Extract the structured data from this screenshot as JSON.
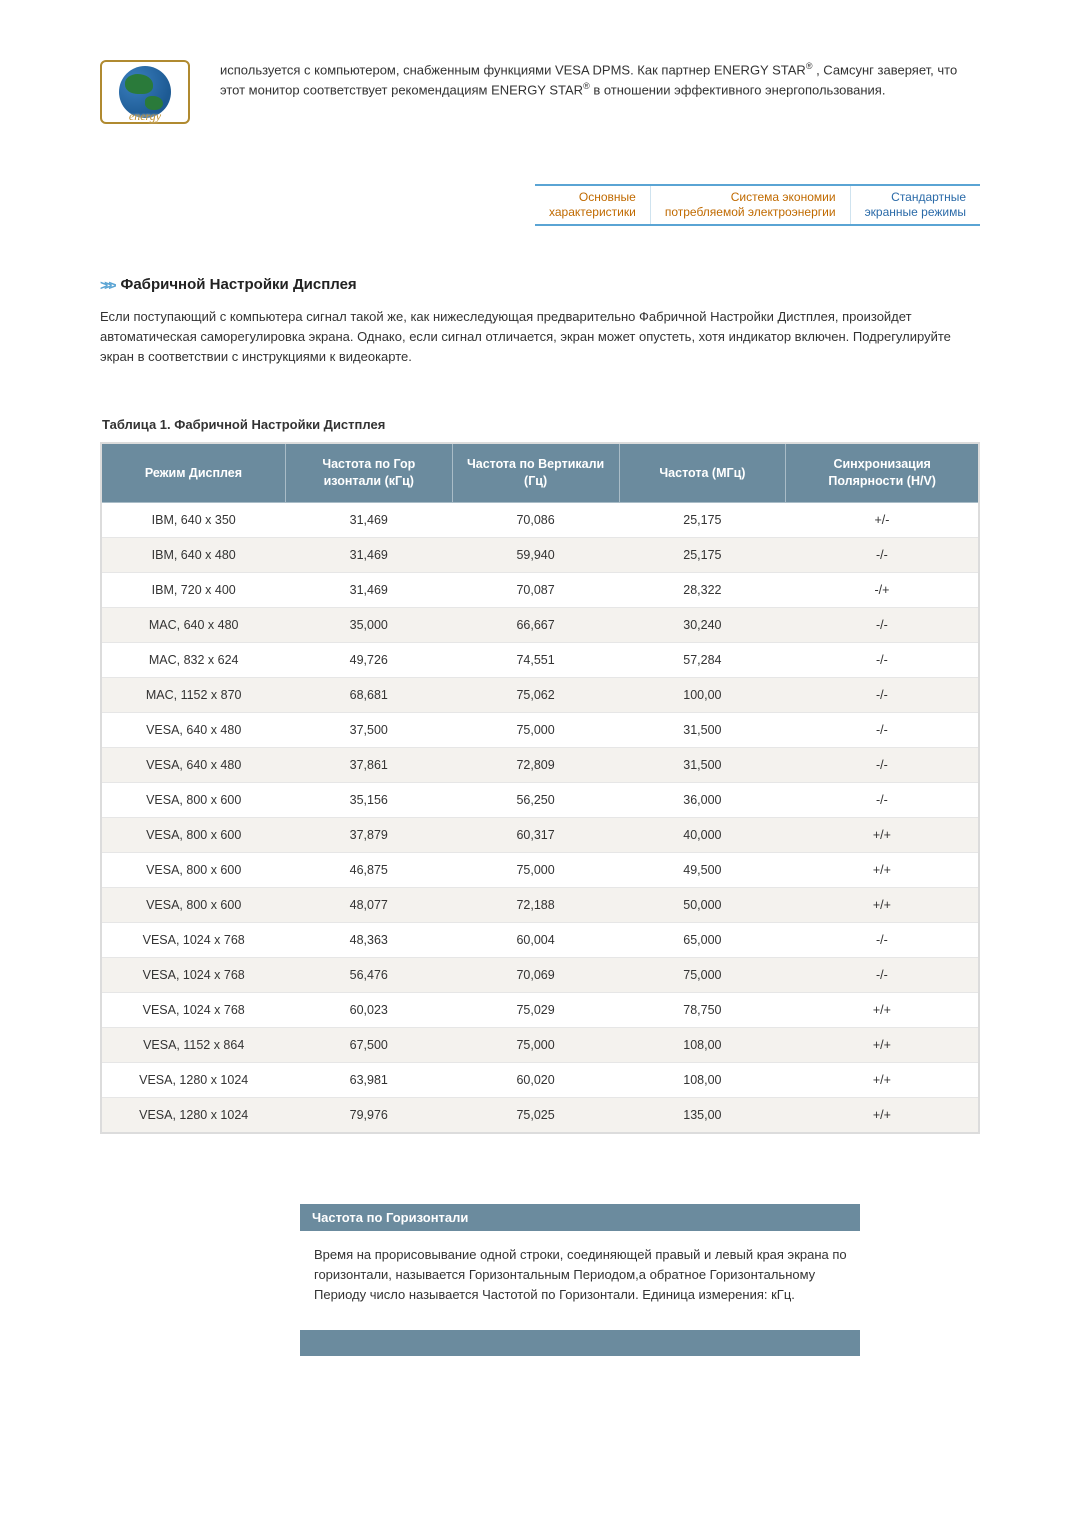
{
  "logo_script": "energy",
  "intro_html": "используется с компьютером, снабженным функциями VESA DPMS. Как партнер ENERGY STAR<sup>®</sup> , Самсунг заверяет, что этот монитор соответствует рекомендациям ENERGY STAR<sup>®</sup> в отношении эффективного энергопользования.",
  "nav": {
    "item1_line1": "Основные",
    "item1_line2": "характеристики",
    "item2_line1": "Система экономии",
    "item2_line2": "потребляемой электроэнергии",
    "item3_line1": "Стандартные",
    "item3_line2": "экранные режимы"
  },
  "section": {
    "title": "Фабричной Настройки Дисплея",
    "body": "Если поступающий с компьютера сигнал такой же, как нижеследующая предварительно Фабричной Настройки Дистплея, произойдет автоматическая саморегулировка экрана. Однако, если сигнал отличается, экран может опустеть, хотя индикатор включен. Подрегулируйте экран в соответствии с инструкциями к видеокарте."
  },
  "table": {
    "caption": "Таблица 1. Фабричной Настройки Дистплея",
    "headers": {
      "c1": "Режим Дисплея",
      "c2": "Частота по Гор изонтали (кГц)",
      "c3": "Частота по Вертикали (Гц)",
      "c4": "Частота (МГц)",
      "c5": "Синхронизация Полярности (H/V)"
    },
    "rows": [
      [
        "IBM, 640 x 350",
        "31,469",
        "70,086",
        "25,175",
        "+/-"
      ],
      [
        "IBM, 640 x 480",
        "31,469",
        "59,940",
        "25,175",
        "-/-"
      ],
      [
        "IBM, 720 x 400",
        "31,469",
        "70,087",
        "28,322",
        "-/+"
      ],
      [
        "MAC, 640 x 480",
        "35,000",
        "66,667",
        "30,240",
        "-/-"
      ],
      [
        "MAC, 832 x 624",
        "49,726",
        "74,551",
        "57,284",
        "-/-"
      ],
      [
        "MAC, 1152 x 870",
        "68,681",
        "75,062",
        "100,00",
        "-/-"
      ],
      [
        "VESA, 640 x 480",
        "37,500",
        "75,000",
        "31,500",
        "-/-"
      ],
      [
        "VESA, 640 x 480",
        "37,861",
        "72,809",
        "31,500",
        "-/-"
      ],
      [
        "VESA, 800 x 600",
        "35,156",
        "56,250",
        "36,000",
        "-/-"
      ],
      [
        "VESA, 800 x 600",
        "37,879",
        "60,317",
        "40,000",
        "+/+"
      ],
      [
        "VESA, 800 x 600",
        "46,875",
        "75,000",
        "49,500",
        "+/+"
      ],
      [
        "VESA, 800 x 600",
        "48,077",
        "72,188",
        "50,000",
        "+/+"
      ],
      [
        "VESA, 1024 x 768",
        "48,363",
        "60,004",
        "65,000",
        "-/-"
      ],
      [
        "VESA, 1024 x 768",
        "56,476",
        "70,069",
        "75,000",
        "-/-"
      ],
      [
        "VESA, 1024 x 768",
        "60,023",
        "75,029",
        "78,750",
        "+/+"
      ],
      [
        "VESA, 1152 x 864",
        "67,500",
        "75,000",
        "108,00",
        "+/+"
      ],
      [
        "VESA, 1280 x 1024",
        "63,981",
        "60,020",
        "108,00",
        "+/+"
      ],
      [
        "VESA, 1280 x 1024",
        "79,976",
        "75,025",
        "135,00",
        "+/+"
      ]
    ],
    "col_widths": [
      "21%",
      "19%",
      "19%",
      "19%",
      "22%"
    ],
    "header_bg": "#6b8b9e",
    "header_fg": "#ffffff",
    "row_alt_bg": "#f4f2ee"
  },
  "note": {
    "head": "Частота по Горизонтали",
    "body": "Время на прорисовывание одной строки, соединяющей правый и левый края экрана по горизонтали, называется Горизонтальным Периодом,а обратное Горизонтальному Периоду число называется Частотой по Горизонтали. Единица измерения: кГц."
  }
}
